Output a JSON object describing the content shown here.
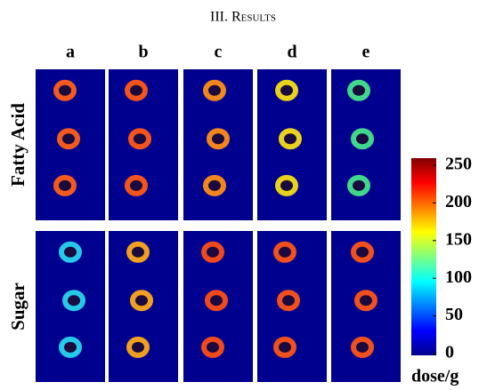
{
  "header": {
    "title": "III. Results"
  },
  "columns": [
    "a",
    "b",
    "c",
    "d",
    "e"
  ],
  "rows": [
    "Fatty Acid",
    "Sugar"
  ],
  "colorbar": {
    "range": [
      0,
      250
    ],
    "ticks": [
      0,
      50,
      100,
      150,
      200,
      250
    ],
    "label": "dose/g"
  }
}
